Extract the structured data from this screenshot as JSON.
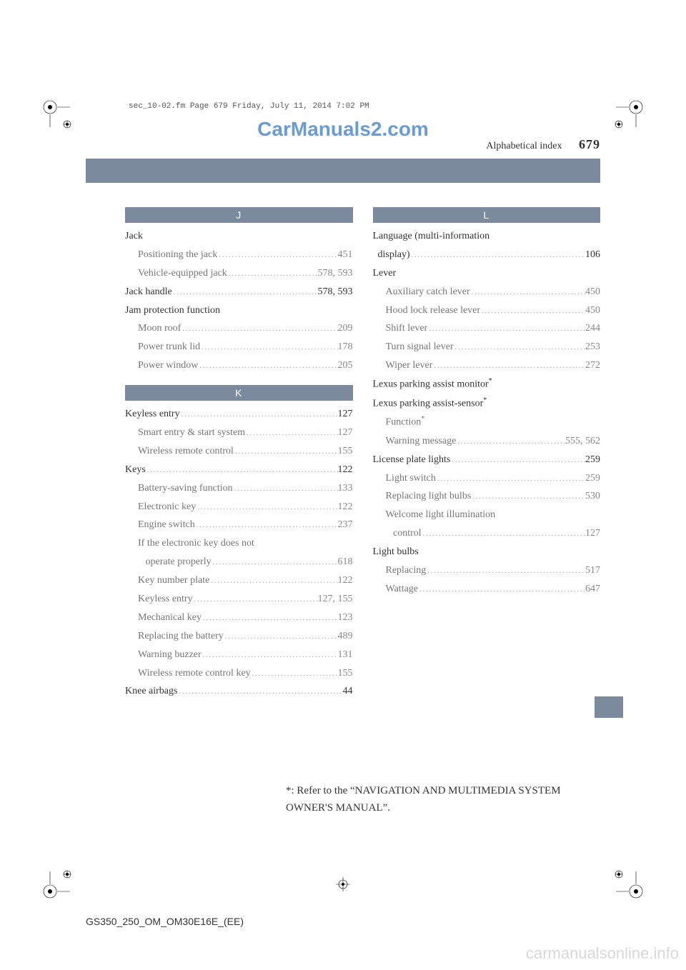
{
  "colors": {
    "bar": "#7c8a9e",
    "watermark_top": "#6a9cd4",
    "watermark_bottom": "#d8d8d8",
    "text_main": "#333333",
    "text_sub": "#767676"
  },
  "printer_header": "sec_10-02.fm  Page 679  Friday, July 11, 2014  7:02 PM",
  "top_watermark": "CarManuals2.com",
  "page_header": {
    "section": "Alphabetical index",
    "number": "679"
  },
  "footnote": "*: Refer to the “NAVIGATION AND MULTIMEDIA SYSTEM OWNER'S MANUAL”.",
  "footer_code": "GS350_250_OM_OM30E16E_(EE)",
  "bottom_watermark": "carmanualsonline.info",
  "left_column": {
    "sections": [
      {
        "letter": "J",
        "items": [
          {
            "type": "main",
            "label": "Jack",
            "page": ""
          },
          {
            "type": "sub",
            "label": "Positioning the jack",
            "page": "451"
          },
          {
            "type": "sub",
            "label": "Vehicle-equipped jack",
            "page": "578, 593"
          },
          {
            "type": "main",
            "label": "Jack handle",
            "page": "578, 593"
          },
          {
            "type": "main",
            "label": "Jam protection function",
            "page": ""
          },
          {
            "type": "sub",
            "label": "Moon roof",
            "page": "209"
          },
          {
            "type": "sub",
            "label": "Power trunk lid",
            "page": "178"
          },
          {
            "type": "sub",
            "label": "Power window",
            "page": "205"
          }
        ]
      },
      {
        "letter": "K",
        "items": [
          {
            "type": "main",
            "label": "Keyless entry",
            "page": "127"
          },
          {
            "type": "sub",
            "label": "Smart entry & start system",
            "page": "127"
          },
          {
            "type": "sub",
            "label": "Wireless remote control",
            "page": "155"
          },
          {
            "type": "main",
            "label": "Keys",
            "page": "122"
          },
          {
            "type": "sub",
            "label": "Battery-saving function",
            "page": "133"
          },
          {
            "type": "sub",
            "label": "Electronic key",
            "page": "122"
          },
          {
            "type": "sub",
            "label": "Engine switch",
            "page": "237"
          },
          {
            "type": "sub",
            "label": "If the electronic key does not",
            "page": "",
            "cont": true
          },
          {
            "type": "sub",
            "label": "   operate properly",
            "page": "618"
          },
          {
            "type": "sub",
            "label": "Key number plate",
            "page": "122"
          },
          {
            "type": "sub",
            "label": "Keyless entry",
            "page": "127, 155"
          },
          {
            "type": "sub",
            "label": "Mechanical key",
            "page": "123"
          },
          {
            "type": "sub",
            "label": "Replacing the battery",
            "page": "489"
          },
          {
            "type": "sub",
            "label": "Warning buzzer",
            "page": "131"
          },
          {
            "type": "sub",
            "label": "Wireless remote control key",
            "page": "155"
          },
          {
            "type": "main",
            "label": "Knee airbags",
            "page": "44"
          }
        ]
      }
    ]
  },
  "right_column": {
    "sections": [
      {
        "letter": "L",
        "items": [
          {
            "type": "main",
            "label": "Language (multi-information",
            "page": "",
            "cont": true
          },
          {
            "type": "main",
            "label": "  display)",
            "page": "106"
          },
          {
            "type": "main",
            "label": "Lever",
            "page": ""
          },
          {
            "type": "sub",
            "label": "Auxiliary catch lever",
            "page": "450"
          },
          {
            "type": "sub",
            "label": "Hood lock release lever",
            "page": "450"
          },
          {
            "type": "sub",
            "label": "Shift lever",
            "page": "244"
          },
          {
            "type": "sub",
            "label": "Turn signal lever",
            "page": "253"
          },
          {
            "type": "sub",
            "label": "Wiper lever",
            "page": "272"
          },
          {
            "type": "main",
            "label": "Lexus parking assist monitor",
            "page": "",
            "star": true
          },
          {
            "type": "main",
            "label": "Lexus parking assist-sensor",
            "page": "",
            "star": true
          },
          {
            "type": "sub",
            "label": "Function",
            "page": "",
            "star": true
          },
          {
            "type": "sub",
            "label": "Warning message",
            "page": "555, 562"
          },
          {
            "type": "main",
            "label": "License plate lights",
            "page": "259"
          },
          {
            "type": "sub",
            "label": "Light switch",
            "page": "259"
          },
          {
            "type": "sub",
            "label": "Replacing light bulbs",
            "page": "530"
          },
          {
            "type": "sub",
            "label": "Welcome light illumination",
            "page": "",
            "cont": true
          },
          {
            "type": "sub",
            "label": "   control",
            "page": "127"
          },
          {
            "type": "main",
            "label": "Light bulbs",
            "page": ""
          },
          {
            "type": "sub",
            "label": "Replacing",
            "page": "517"
          },
          {
            "type": "sub",
            "label": "Wattage",
            "page": "647"
          }
        ]
      }
    ]
  }
}
